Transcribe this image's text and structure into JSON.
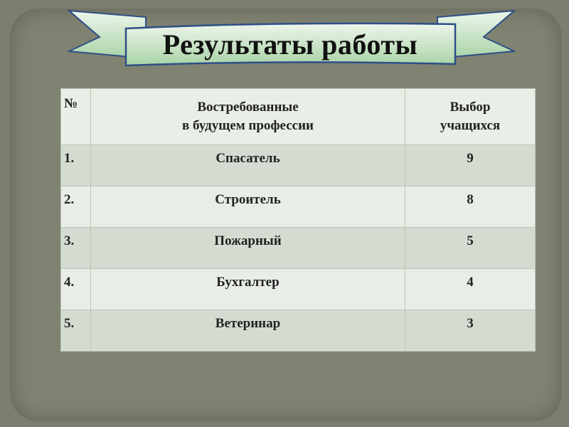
{
  "slide": {
    "title": "Результаты работы"
  },
  "table": {
    "headers": [
      "№",
      "Востребованные\nв будущем профессии",
      "Выбор\nучащихся"
    ],
    "header_lines": {
      "col2": [
        "Востребованные",
        "в будущем профессии"
      ],
      "col3": [
        "Выбор",
        "учащихся"
      ]
    },
    "rows": [
      {
        "num": "1.",
        "profession": "Спасатель",
        "count": "9"
      },
      {
        "num": "2.",
        "profession": "Строитель",
        "count": "8"
      },
      {
        "num": "3.",
        "profession": "Пожарный",
        "count": "5"
      },
      {
        "num": "4.",
        "profession": "Бухгалтер",
        "count": "4"
      },
      {
        "num": "5.",
        "profession": "Ветеринар",
        "count": "3"
      }
    ]
  },
  "colors": {
    "background": "#7c7f6f",
    "banner_fill": "#c9e3c6",
    "banner_border": "#2d4f86",
    "row_dark": "#d4dcd1",
    "row_light": "#e9ede7"
  }
}
